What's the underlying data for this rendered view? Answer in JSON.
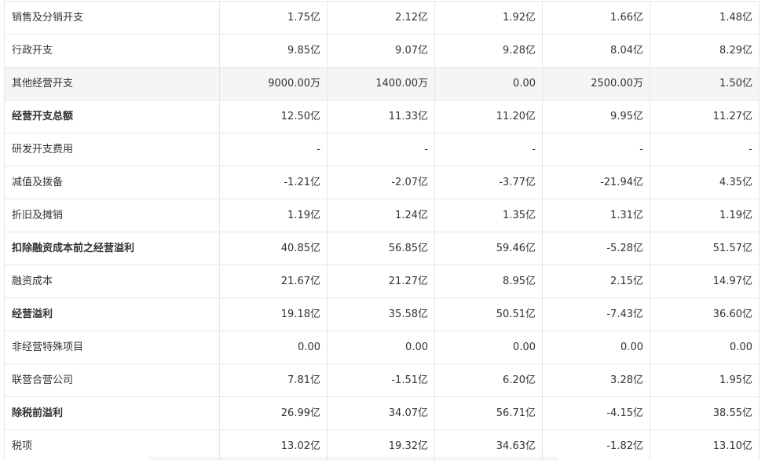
{
  "rows": [
    {
      "label": "销售及分销开支",
      "values": [
        "1.75亿",
        "2.12亿",
        "1.92亿",
        "1.66亿",
        "1.48亿"
      ],
      "bold": false,
      "highlight": false
    },
    {
      "label": "行政开支",
      "values": [
        "9.85亿",
        "9.07亿",
        "9.28亿",
        "8.04亿",
        "8.29亿"
      ],
      "bold": false,
      "highlight": false
    },
    {
      "label": "其他经营开支",
      "values": [
        "9000.00万",
        "1400.00万",
        "0.00",
        "2500.00万",
        "1.50亿"
      ],
      "bold": false,
      "highlight": true
    },
    {
      "label": "经营开支总额",
      "values": [
        "12.50亿",
        "11.33亿",
        "11.20亿",
        "9.95亿",
        "11.27亿"
      ],
      "bold": true,
      "highlight": false
    },
    {
      "label": "研发开支费用",
      "values": [
        "-",
        "-",
        "-",
        "-",
        "-"
      ],
      "bold": false,
      "highlight": false
    },
    {
      "label": "减值及拨备",
      "values": [
        "-1.21亿",
        "-2.07亿",
        "-3.77亿",
        "-21.94亿",
        "4.35亿"
      ],
      "bold": false,
      "highlight": false
    },
    {
      "label": "折旧及摊销",
      "values": [
        "1.19亿",
        "1.24亿",
        "1.35亿",
        "1.31亿",
        "1.19亿"
      ],
      "bold": false,
      "highlight": false
    },
    {
      "label": "扣除融资成本前之经营溢利",
      "values": [
        "40.85亿",
        "56.85亿",
        "59.46亿",
        "-5.28亿",
        "51.57亿"
      ],
      "bold": true,
      "highlight": false
    },
    {
      "label": "融资成本",
      "values": [
        "21.67亿",
        "21.27亿",
        "8.95亿",
        "2.15亿",
        "14.97亿"
      ],
      "bold": false,
      "highlight": false
    },
    {
      "label": "经营溢利",
      "values": [
        "19.18亿",
        "35.58亿",
        "50.51亿",
        "-7.43亿",
        "36.60亿"
      ],
      "bold": true,
      "highlight": false
    },
    {
      "label": "非经营特殊项目",
      "values": [
        "0.00",
        "0.00",
        "0.00",
        "0.00",
        "0.00"
      ],
      "bold": false,
      "highlight": false
    },
    {
      "label": "联营合营公司",
      "values": [
        "7.81亿",
        "-1.51亿",
        "6.20亿",
        "3.28亿",
        "1.95亿"
      ],
      "bold": false,
      "highlight": false
    },
    {
      "label": "除税前溢利",
      "values": [
        "26.99亿",
        "34.07亿",
        "56.71亿",
        "-4.15亿",
        "38.55亿"
      ],
      "bold": true,
      "highlight": false
    },
    {
      "label": "税项",
      "values": [
        "13.02亿",
        "19.32亿",
        "34.63亿",
        "-1.82亿",
        "13.10亿"
      ],
      "bold": false,
      "highlight": false
    }
  ]
}
